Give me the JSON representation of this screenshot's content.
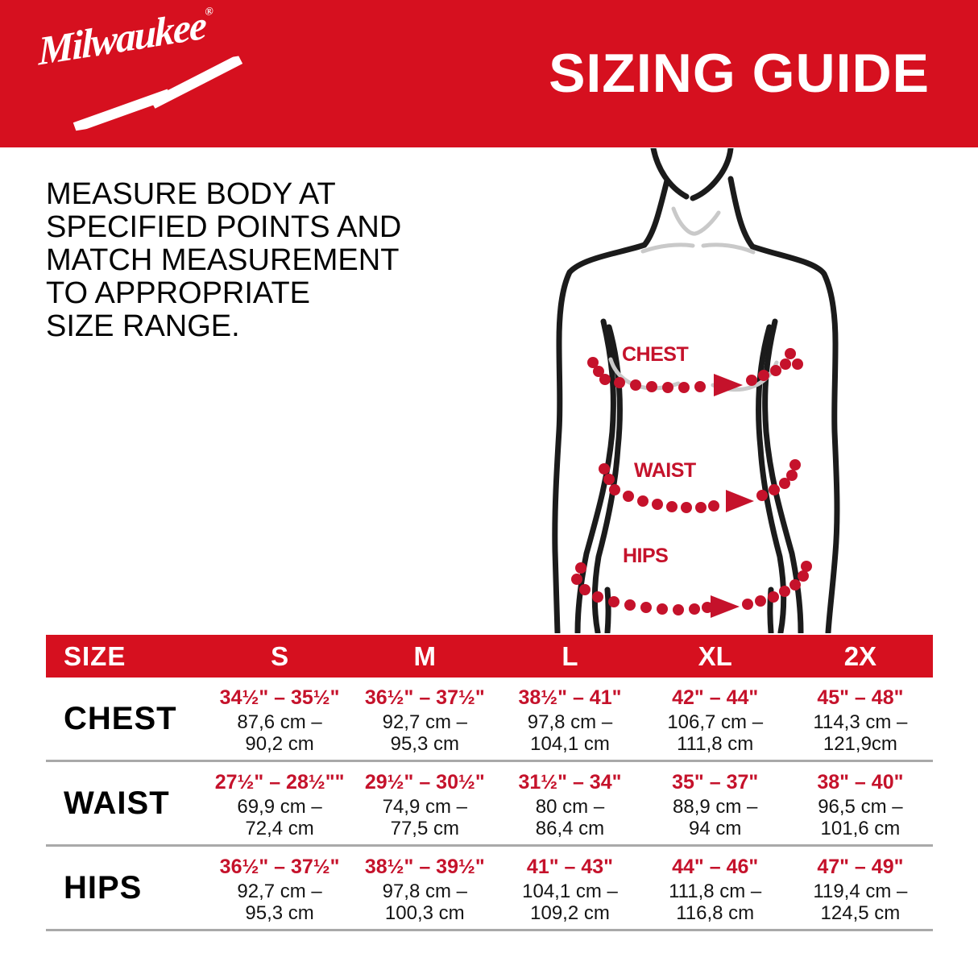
{
  "banner": {
    "logo_text": "Milwaukee",
    "registered_mark": "®",
    "title": "SIZING GUIDE"
  },
  "intro_text": "MEASURE BODY AT\nSPECIFIED POINTS AND\nMATCH MEASUREMENT\nTO APPROPRIATE\nSIZE RANGE.",
  "figure_labels": {
    "chest": "CHEST",
    "waist": "WAIST",
    "hips": "HIPS"
  },
  "table": {
    "header": {
      "size_label": "SIZE",
      "columns": [
        "S",
        "M",
        "L",
        "XL",
        "2X"
      ]
    },
    "rows": [
      {
        "label": "CHEST",
        "cells": [
          {
            "inches": "34½\" – 35½\"",
            "cm1": "87,6 cm –",
            "cm2": "90,2 cm"
          },
          {
            "inches": "36½\" – 37½\"",
            "cm1": "92,7 cm –",
            "cm2": "95,3 cm"
          },
          {
            "inches": "38½\" – 41\"",
            "cm1": "97,8 cm –",
            "cm2": "104,1 cm"
          },
          {
            "inches": "42\" – 44\"",
            "cm1": "106,7 cm –",
            "cm2": "111,8 cm"
          },
          {
            "inches": "45\" – 48\"",
            "cm1": "114,3 cm –",
            "cm2": "121,9cm"
          }
        ]
      },
      {
        "label": "WAIST",
        "cells": [
          {
            "inches": "27½\" – 28½\"\"",
            "cm1": "69,9 cm –",
            "cm2": "72,4 cm"
          },
          {
            "inches": "29½\" – 30½\"",
            "cm1": "74,9 cm –",
            "cm2": "77,5 cm"
          },
          {
            "inches": "31½\" – 34\"",
            "cm1": "80 cm –",
            "cm2": "86,4 cm"
          },
          {
            "inches": "35\" – 37\"",
            "cm1": "88,9 cm –",
            "cm2": "94 cm"
          },
          {
            "inches": "38\" – 40\"",
            "cm1": "96,5 cm –",
            "cm2": "101,6 cm"
          }
        ]
      },
      {
        "label": "HIPS",
        "cells": [
          {
            "inches": "36½\" – 37½\"",
            "cm1": "92,7 cm –",
            "cm2": "95,3 cm"
          },
          {
            "inches": "38½\" – 39½\"",
            "cm1": "97,8 cm –",
            "cm2": "100,3 cm"
          },
          {
            "inches": "41\" – 43\"",
            "cm1": "104,1 cm –",
            "cm2": "109,2 cm"
          },
          {
            "inches": "44\" – 46\"",
            "cm1": "111,8 cm –",
            "cm2": "116,8 cm"
          },
          {
            "inches": "47\" – 49\"",
            "cm1": "119,4 cm –",
            "cm2": "124,5 cm"
          }
        ]
      }
    ]
  },
  "colors": {
    "brand_red": "#d6101f",
    "text_red": "#c5122b",
    "ink": "#0a0a0a",
    "divider_gray": "#a9a9a9",
    "detail_gray": "#c9c9c9"
  }
}
